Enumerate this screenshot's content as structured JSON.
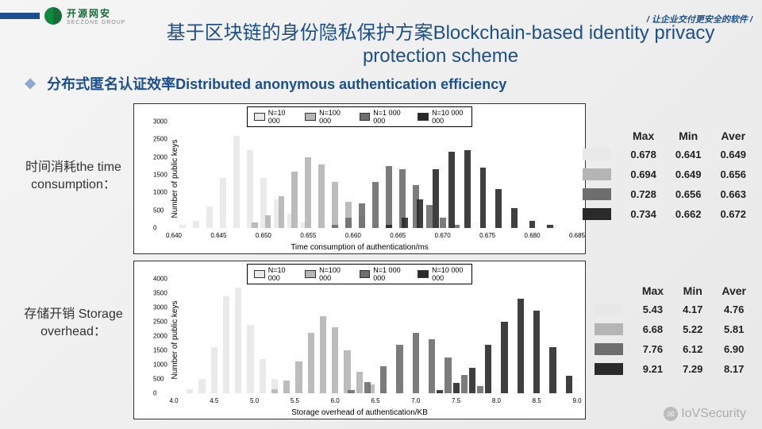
{
  "logo": {
    "cn": "开源网安",
    "en": "SECZONE GROUP"
  },
  "tagline": "/ 让企业交付更安全的软件 /",
  "title": "基于区块链的身份隐私保护方案Blockchain-based identity privacy protection scheme",
  "subtitle": "分布式匿名认证效率Distributed anonymous authentication efficiency",
  "series": {
    "labels": [
      "N=10 000",
      "N=100 000",
      "N=1 000 000",
      "N=10 000 000"
    ],
    "colors": [
      "#e8e8e8",
      "#b5b5b5",
      "#6e6e6e",
      "#2a2a2a"
    ]
  },
  "chart_top": {
    "row_label": "时间消耗the time consumption：",
    "type": "histogram",
    "ylabel": "Number of public keys",
    "xlabel": "Time consumption of authentication/ms",
    "xlim": [
      0.64,
      0.685
    ],
    "ylim": [
      0,
      3000
    ],
    "xticks": [
      0.64,
      0.645,
      0.65,
      0.655,
      0.66,
      0.665,
      0.67,
      0.675,
      0.68,
      0.685
    ],
    "yticks": [
      0,
      500,
      1000,
      1500,
      2000,
      2500,
      3000
    ],
    "fontsize": {
      "label": 10,
      "tick": 8,
      "legend": 9
    },
    "bar_width": 0.0007,
    "series_data": [
      {
        "color_idx": 0,
        "bins": [
          [
            0.641,
            100
          ],
          [
            0.6425,
            200
          ],
          [
            0.644,
            600
          ],
          [
            0.6455,
            1400
          ],
          [
            0.647,
            2600
          ],
          [
            0.6485,
            2200
          ],
          [
            0.65,
            1400
          ],
          [
            0.6515,
            800
          ],
          [
            0.653,
            400
          ],
          [
            0.6545,
            150
          ]
        ]
      },
      {
        "color_idx": 1,
        "bins": [
          [
            0.649,
            150
          ],
          [
            0.6505,
            350
          ],
          [
            0.652,
            900
          ],
          [
            0.6535,
            1600
          ],
          [
            0.655,
            2000
          ],
          [
            0.6565,
            1800
          ],
          [
            0.658,
            1300
          ],
          [
            0.6595,
            750
          ],
          [
            0.661,
            350
          ],
          [
            0.6625,
            120
          ]
        ]
      },
      {
        "color_idx": 2,
        "bins": [
          [
            0.658,
            100
          ],
          [
            0.6595,
            300
          ],
          [
            0.661,
            700
          ],
          [
            0.6625,
            1300
          ],
          [
            0.664,
            1750
          ],
          [
            0.6655,
            1650
          ],
          [
            0.667,
            1200
          ],
          [
            0.6685,
            650
          ],
          [
            0.67,
            300
          ],
          [
            0.6715,
            100
          ]
        ]
      },
      {
        "color_idx": 3,
        "bins": [
          [
            0.664,
            100
          ],
          [
            0.6658,
            300
          ],
          [
            0.6675,
            800
          ],
          [
            0.6692,
            1650
          ],
          [
            0.671,
            2150
          ],
          [
            0.6728,
            2200
          ],
          [
            0.6745,
            1700
          ],
          [
            0.6762,
            1100
          ],
          [
            0.678,
            550
          ],
          [
            0.68,
            200
          ],
          [
            0.682,
            80
          ]
        ]
      }
    ]
  },
  "chart_bot": {
    "row_label": "存储开销 Storage overhead：",
    "type": "histogram",
    "ylabel": "Number of public keys",
    "xlabel": "Storage overhead of authentication/KB",
    "xlim": [
      4.0,
      9.0
    ],
    "ylim": [
      0,
      4000
    ],
    "xticks": [
      4.0,
      4.5,
      5.0,
      5.5,
      6.0,
      6.5,
      7.0,
      7.5,
      8.0,
      8.5,
      9.0
    ],
    "yticks": [
      0,
      500,
      1000,
      1500,
      2000,
      2500,
      3000,
      3500,
      4000
    ],
    "fontsize": {
      "label": 10,
      "tick": 8,
      "legend": 9
    },
    "bar_width": 0.08,
    "series_data": [
      {
        "color_idx": 0,
        "bins": [
          [
            4.2,
            150
          ],
          [
            4.35,
            500
          ],
          [
            4.5,
            1600
          ],
          [
            4.65,
            3400
          ],
          [
            4.8,
            3700
          ],
          [
            4.95,
            2400
          ],
          [
            5.1,
            1200
          ],
          [
            5.25,
            500
          ],
          [
            5.4,
            150
          ]
        ]
      },
      {
        "color_idx": 1,
        "bins": [
          [
            5.25,
            150
          ],
          [
            5.4,
            450
          ],
          [
            5.55,
            1100
          ],
          [
            5.7,
            2100
          ],
          [
            5.85,
            2700
          ],
          [
            6.0,
            2300
          ],
          [
            6.15,
            1500
          ],
          [
            6.3,
            750
          ],
          [
            6.45,
            300
          ],
          [
            6.6,
            100
          ]
        ]
      },
      {
        "color_idx": 2,
        "bins": [
          [
            6.2,
            120
          ],
          [
            6.4,
            400
          ],
          [
            6.6,
            950
          ],
          [
            6.8,
            1700
          ],
          [
            7.0,
            2100
          ],
          [
            7.2,
            1900
          ],
          [
            7.4,
            1250
          ],
          [
            7.6,
            650
          ],
          [
            7.8,
            250
          ]
        ]
      },
      {
        "color_idx": 3,
        "bins": [
          [
            7.3,
            100
          ],
          [
            7.5,
            350
          ],
          [
            7.7,
            900
          ],
          [
            7.9,
            1700
          ],
          [
            8.1,
            2500
          ],
          [
            8.3,
            3300
          ],
          [
            8.5,
            2900
          ],
          [
            8.7,
            1600
          ],
          [
            8.9,
            600
          ]
        ]
      }
    ]
  },
  "table_top": {
    "headers": [
      "Max",
      "Min",
      "Aver"
    ],
    "rows": [
      {
        "color_idx": 0,
        "values": [
          "0.678",
          "0.641",
          "0.649"
        ]
      },
      {
        "color_idx": 1,
        "values": [
          "0.694",
          "0.649",
          "0.656"
        ]
      },
      {
        "color_idx": 2,
        "values": [
          "0.728",
          "0.656",
          "0.663"
        ]
      },
      {
        "color_idx": 3,
        "values": [
          "0.734",
          "0.662",
          "0.672"
        ]
      }
    ]
  },
  "table_bot": {
    "headers": [
      "Max",
      "Min",
      "Aver"
    ],
    "rows": [
      {
        "color_idx": 0,
        "values": [
          "5.43",
          "4.17",
          "4.76"
        ]
      },
      {
        "color_idx": 1,
        "values": [
          "6.68",
          "5.22",
          "5.81"
        ]
      },
      {
        "color_idx": 2,
        "values": [
          "7.76",
          "6.12",
          "6.90"
        ]
      },
      {
        "color_idx": 3,
        "values": [
          "9.21",
          "7.29",
          "8.17"
        ]
      }
    ]
  },
  "watermark": "IoVSecurity"
}
